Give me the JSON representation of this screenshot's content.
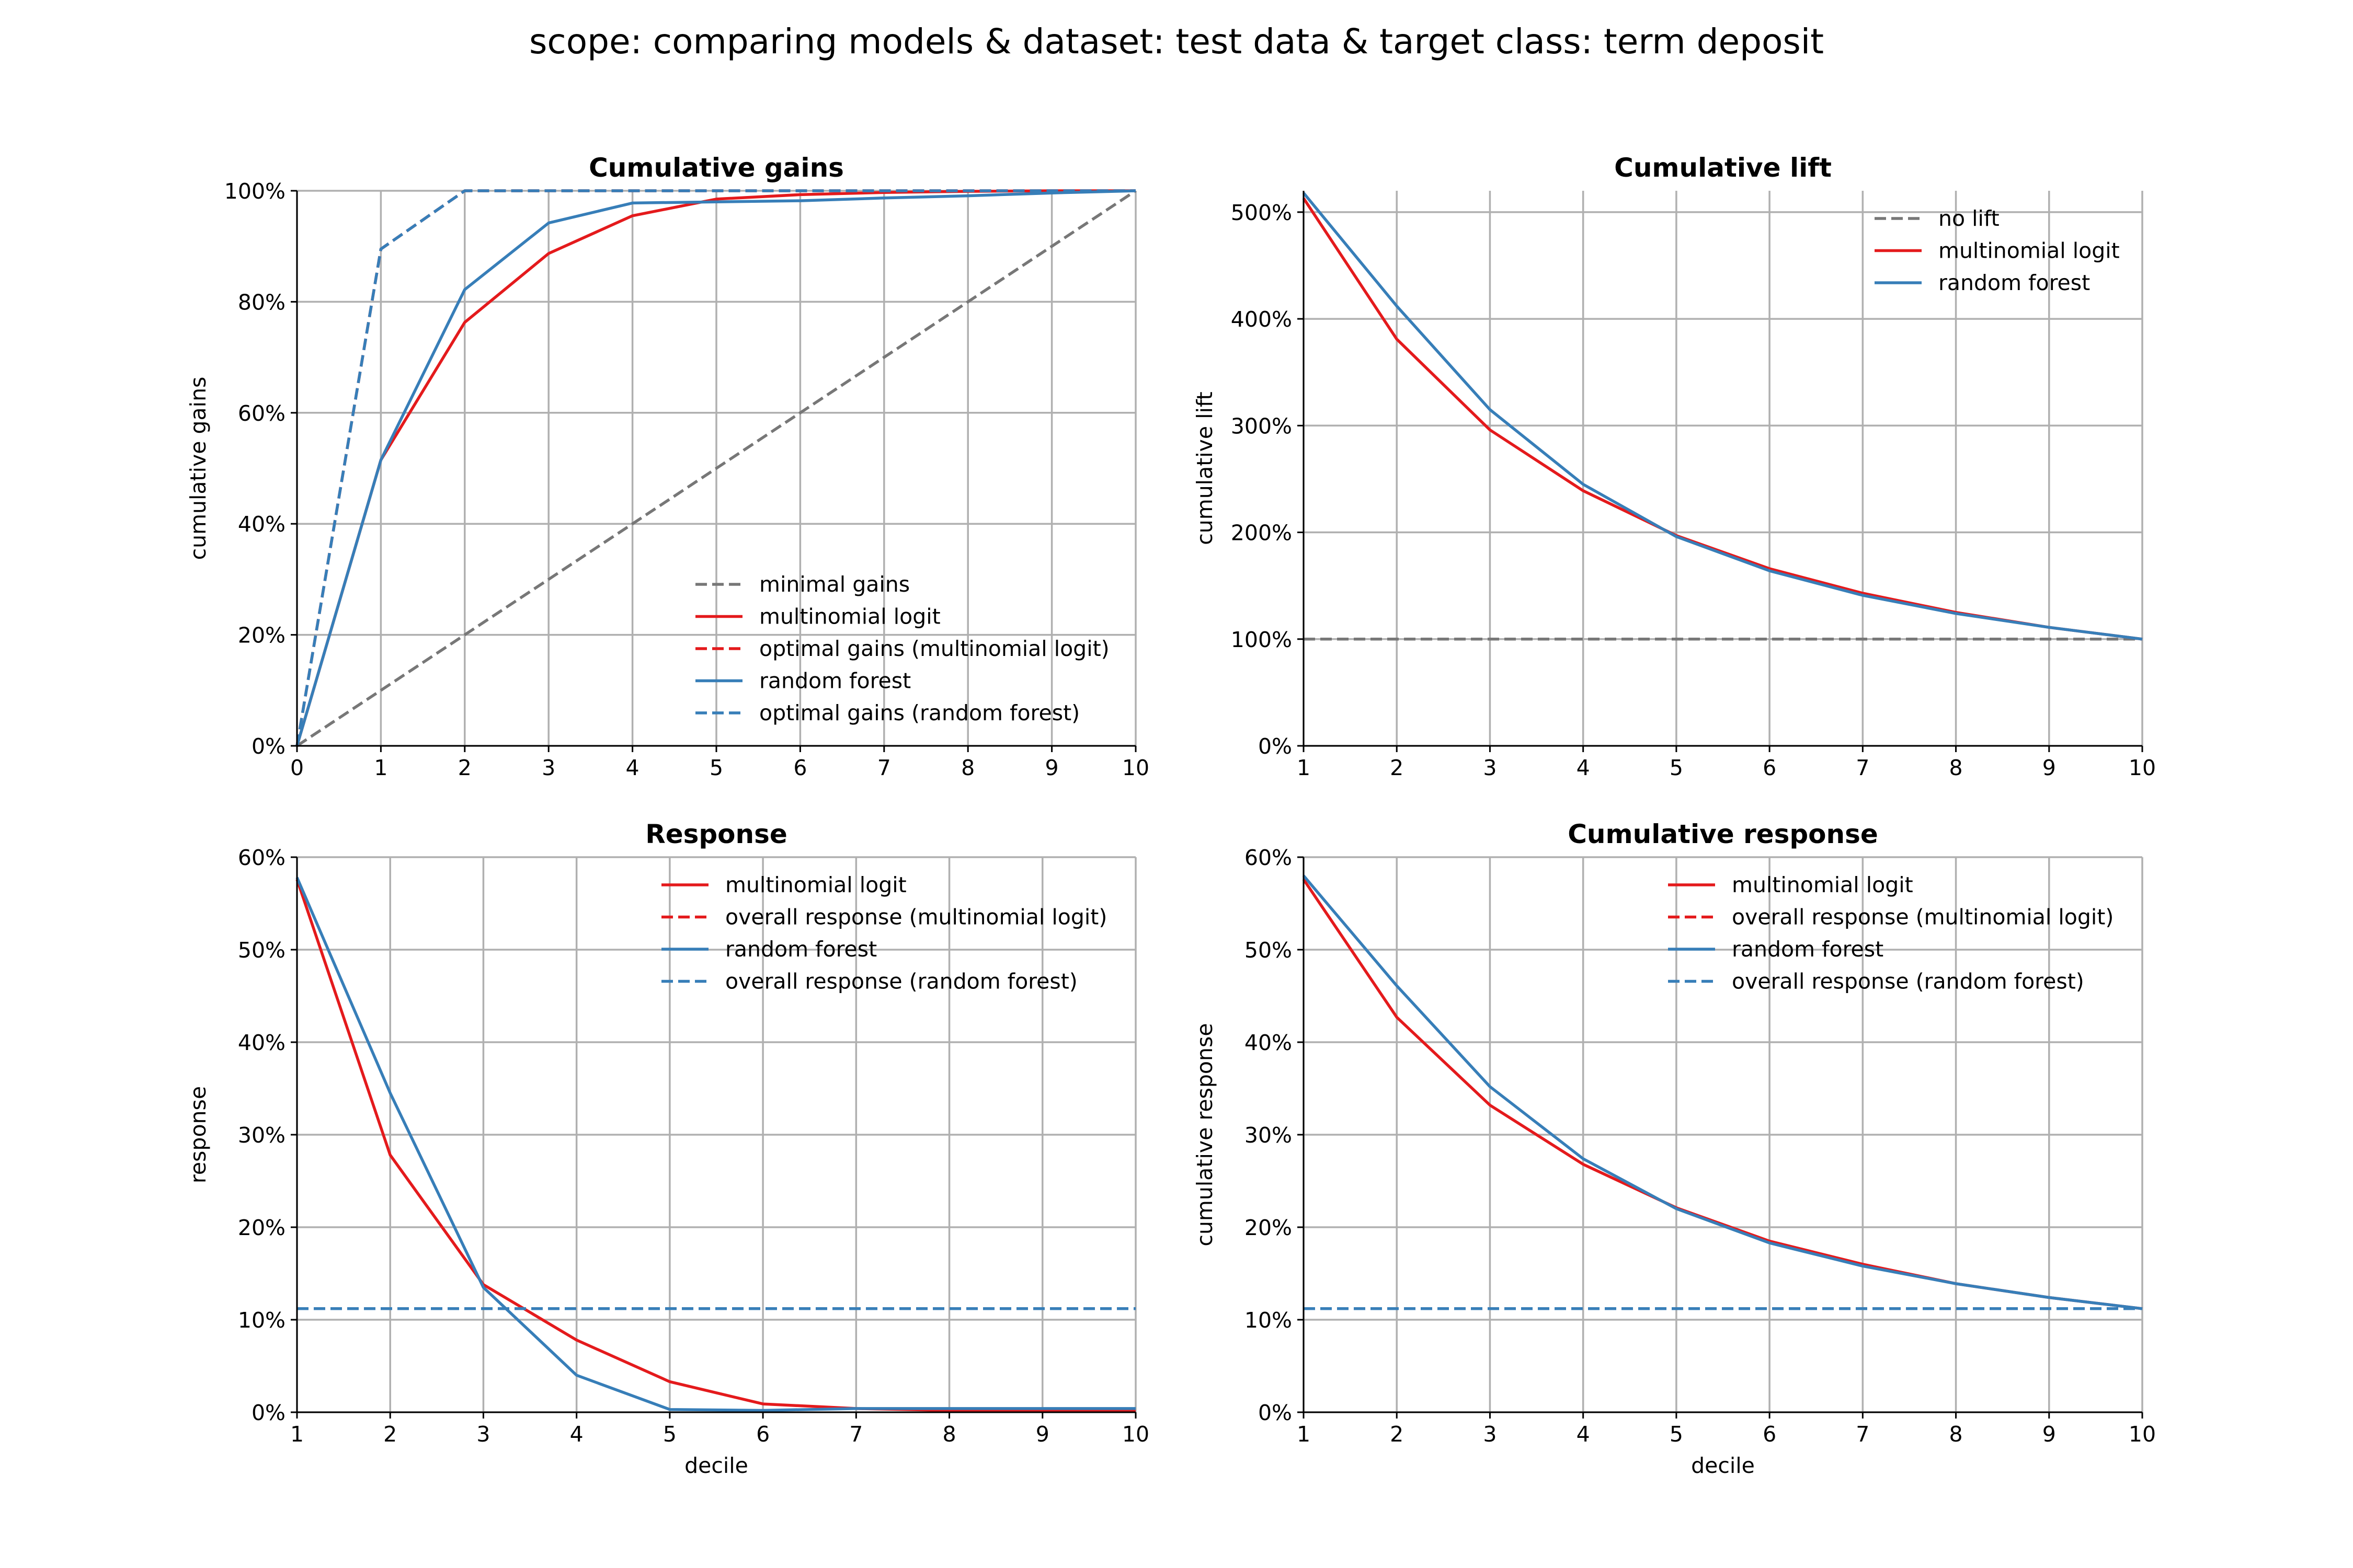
{
  "suptitle": "scope: comparing models & dataset: test data & target class: term deposit",
  "colors": {
    "minimal": "#777777",
    "logit": "#e41a1c",
    "forest": "#377eb8",
    "grid": "#b0b0b0"
  },
  "chart_data": [
    {
      "type": "line",
      "title": "Cumulative gains",
      "xlabel": "",
      "ylabel": "cumulative gains",
      "xlim": [
        0,
        10
      ],
      "ylim": [
        0,
        1
      ],
      "xticks": [
        "0",
        "1",
        "2",
        "3",
        "4",
        "5",
        "6",
        "7",
        "8",
        "9",
        "10"
      ],
      "yticks": [
        "0%",
        "20%",
        "40%",
        "60%",
        "80%",
        "100%"
      ],
      "ytick_values": [
        0,
        0.2,
        0.4,
        0.6,
        0.8,
        1.0
      ],
      "grid": true,
      "legend_position": "bottom-right",
      "x": [
        0,
        1,
        2,
        3,
        4,
        5,
        6,
        7,
        8,
        9,
        10
      ],
      "series": [
        {
          "name": "minimal gains",
          "color": "#777777",
          "dash": true,
          "values": [
            0,
            0.1,
            0.2,
            0.3,
            0.4,
            0.5,
            0.6,
            0.7,
            0.8,
            0.9,
            1.0
          ]
        },
        {
          "name": "multinomial logit",
          "color": "#e41a1c",
          "dash": false,
          "values": [
            0,
            0.515,
            0.763,
            0.887,
            0.955,
            0.985,
            0.993,
            0.997,
            0.999,
            1.0,
            1.0
          ]
        },
        {
          "name": "optimal gains (multinomial logit)",
          "color": "#e41a1c",
          "dash": true,
          "values": [
            0,
            0.895,
            1.0,
            1.0,
            1.0,
            1.0,
            1.0,
            1.0,
            1.0,
            1.0,
            1.0
          ]
        },
        {
          "name": "random forest",
          "color": "#377eb8",
          "dash": false,
          "values": [
            0,
            0.515,
            0.822,
            0.942,
            0.978,
            0.98,
            0.982,
            0.987,
            0.991,
            0.996,
            1.0
          ]
        },
        {
          "name": "optimal gains (random forest)",
          "color": "#377eb8",
          "dash": true,
          "values": [
            0,
            0.895,
            1.0,
            1.0,
            1.0,
            1.0,
            1.0,
            1.0,
            1.0,
            1.0,
            1.0
          ]
        }
      ]
    },
    {
      "type": "line",
      "title": "Cumulative lift",
      "xlabel": "",
      "ylabel": "cumulative lift",
      "xlim": [
        1,
        10
      ],
      "ylim": [
        0,
        5.2
      ],
      "xticks": [
        "1",
        "2",
        "3",
        "4",
        "5",
        "6",
        "7",
        "8",
        "9",
        "10"
      ],
      "yticks": [
        "0%",
        "100%",
        "200%",
        "300%",
        "400%",
        "500%"
      ],
      "ytick_values": [
        0,
        1,
        2,
        3,
        4,
        5
      ],
      "grid": true,
      "legend_position": "top-right",
      "x": [
        1,
        2,
        3,
        4,
        5,
        6,
        7,
        8,
        9,
        10
      ],
      "series": [
        {
          "name": "no lift",
          "color": "#777777",
          "dash": true,
          "values": [
            1,
            1,
            1,
            1,
            1,
            1,
            1,
            1,
            1,
            1
          ]
        },
        {
          "name": "multinomial logit",
          "color": "#e41a1c",
          "dash": false,
          "values": [
            5.13,
            3.81,
            2.96,
            2.39,
            1.97,
            1.66,
            1.43,
            1.25,
            1.11,
            1.0
          ]
        },
        {
          "name": "random forest",
          "color": "#377eb8",
          "dash": false,
          "values": [
            5.18,
            4.12,
            3.15,
            2.45,
            1.96,
            1.64,
            1.41,
            1.24,
            1.11,
            1.0
          ]
        }
      ]
    },
    {
      "type": "line",
      "title": "Response",
      "xlabel": "decile",
      "ylabel": "response",
      "xlim": [
        1,
        10
      ],
      "ylim": [
        0,
        0.6
      ],
      "xticks": [
        "1",
        "2",
        "3",
        "4",
        "5",
        "6",
        "7",
        "8",
        "9",
        "10"
      ],
      "yticks": [
        "0%",
        "10%",
        "20%",
        "30%",
        "40%",
        "50%",
        "60%"
      ],
      "ytick_values": [
        0,
        0.1,
        0.2,
        0.3,
        0.4,
        0.5,
        0.6
      ],
      "grid": true,
      "legend_position": "top-right",
      "x": [
        1,
        2,
        3,
        4,
        5,
        6,
        7,
        8,
        9,
        10
      ],
      "series": [
        {
          "name": "multinomial logit",
          "color": "#e41a1c",
          "dash": false,
          "values": [
            0.576,
            0.278,
            0.138,
            0.078,
            0.033,
            0.009,
            0.004,
            0.002,
            0.002,
            0.002
          ]
        },
        {
          "name": "overall response (multinomial logit)",
          "color": "#e41a1c",
          "dash": true,
          "values": [
            0.112,
            0.112,
            0.112,
            0.112,
            0.112,
            0.112,
            0.112,
            0.112,
            0.112,
            0.112
          ]
        },
        {
          "name": "random forest",
          "color": "#377eb8",
          "dash": false,
          "values": [
            0.578,
            0.345,
            0.135,
            0.04,
            0.003,
            0.002,
            0.004,
            0.004,
            0.004,
            0.004
          ]
        },
        {
          "name": "overall response (random forest)",
          "color": "#377eb8",
          "dash": true,
          "values": [
            0.112,
            0.112,
            0.112,
            0.112,
            0.112,
            0.112,
            0.112,
            0.112,
            0.112,
            0.112
          ]
        }
      ]
    },
    {
      "type": "line",
      "title": "Cumulative response",
      "xlabel": "decile",
      "ylabel": "cumulative response",
      "xlim": [
        1,
        10
      ],
      "ylim": [
        0,
        0.6
      ],
      "xticks": [
        "1",
        "2",
        "3",
        "4",
        "5",
        "6",
        "7",
        "8",
        "9",
        "10"
      ],
      "yticks": [
        "0%",
        "10%",
        "20%",
        "30%",
        "40%",
        "50%",
        "60%"
      ],
      "ytick_values": [
        0,
        0.1,
        0.2,
        0.3,
        0.4,
        0.5,
        0.6
      ],
      "grid": true,
      "legend_position": "top-right",
      "x": [
        1,
        2,
        3,
        4,
        5,
        6,
        7,
        8,
        9,
        10
      ],
      "series": [
        {
          "name": "multinomial logit",
          "color": "#e41a1c",
          "dash": false,
          "values": [
            0.576,
            0.427,
            0.332,
            0.268,
            0.221,
            0.185,
            0.16,
            0.139,
            0.124,
            0.112
          ]
        },
        {
          "name": "overall response (multinomial logit)",
          "color": "#e41a1c",
          "dash": true,
          "values": [
            0.112,
            0.112,
            0.112,
            0.112,
            0.112,
            0.112,
            0.112,
            0.112,
            0.112,
            0.112
          ]
        },
        {
          "name": "random forest",
          "color": "#377eb8",
          "dash": false,
          "values": [
            0.58,
            0.461,
            0.352,
            0.274,
            0.22,
            0.183,
            0.158,
            0.139,
            0.124,
            0.112
          ]
        },
        {
          "name": "overall response (random forest)",
          "color": "#377eb8",
          "dash": true,
          "values": [
            0.112,
            0.112,
            0.112,
            0.112,
            0.112,
            0.112,
            0.112,
            0.112,
            0.112,
            0.112
          ]
        }
      ]
    }
  ]
}
